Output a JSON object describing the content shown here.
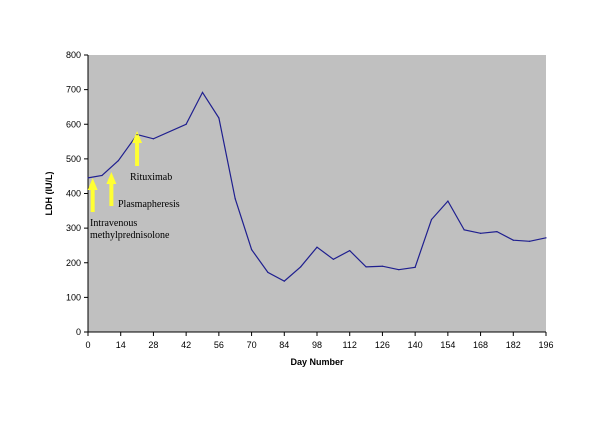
{
  "chart_data": {
    "type": "line",
    "title": "",
    "xlabel": "Day Number",
    "ylabel": "LDH (IU/L)",
    "xlim": [
      0,
      196
    ],
    "ylim": [
      0,
      800
    ],
    "grid": false,
    "legend": "none",
    "x_ticks": [
      0,
      14,
      28,
      42,
      56,
      70,
      84,
      98,
      112,
      126,
      140,
      154,
      168,
      182,
      196
    ],
    "y_ticks": [
      0,
      100,
      200,
      300,
      400,
      500,
      600,
      700,
      800
    ],
    "x_tick_labels": [
      "0",
      "14",
      "28",
      "42",
      "56",
      "70",
      "84",
      "98",
      "112",
      "126",
      "140",
      "154",
      "168",
      "182",
      "196"
    ],
    "y_tick_labels": [
      "0",
      "100",
      "200",
      "300",
      "400",
      "500",
      "600",
      "700",
      "800"
    ],
    "series": [
      {
        "points": [
          [
            0,
            445
          ],
          [
            6,
            452
          ],
          [
            13,
            495
          ],
          [
            21,
            570
          ],
          [
            28,
            558
          ],
          [
            42,
            600
          ],
          [
            49,
            692
          ],
          [
            56,
            618
          ],
          [
            63,
            385
          ],
          [
            70,
            238
          ],
          [
            77,
            172
          ],
          [
            84,
            147
          ],
          [
            91,
            188
          ],
          [
            98,
            245
          ],
          [
            105,
            210
          ],
          [
            112,
            235
          ],
          [
            119,
            188
          ],
          [
            126,
            190
          ],
          [
            133,
            180
          ],
          [
            140,
            187
          ],
          [
            147,
            325
          ],
          [
            154,
            378
          ],
          [
            161,
            295
          ],
          [
            168,
            285
          ],
          [
            175,
            290
          ],
          [
            182,
            265
          ],
          [
            189,
            262
          ],
          [
            196,
            272
          ]
        ]
      }
    ],
    "annotations": [
      {
        "text": "Intravenous methylprednisolone",
        "lines": [
          "Intravenous",
          "methylprednisolone"
        ],
        "x": 2
      },
      {
        "text": "Plasmapheresis",
        "lines": [
          "Plasmapheresis"
        ],
        "x": 10
      },
      {
        "text": "Rituximab",
        "lines": [
          "Rituximab"
        ],
        "x": 21
      }
    ],
    "colors": {
      "plot_background": "#c0c0c0",
      "line": "#1f1f8f",
      "arrow": "#ffff33"
    }
  }
}
